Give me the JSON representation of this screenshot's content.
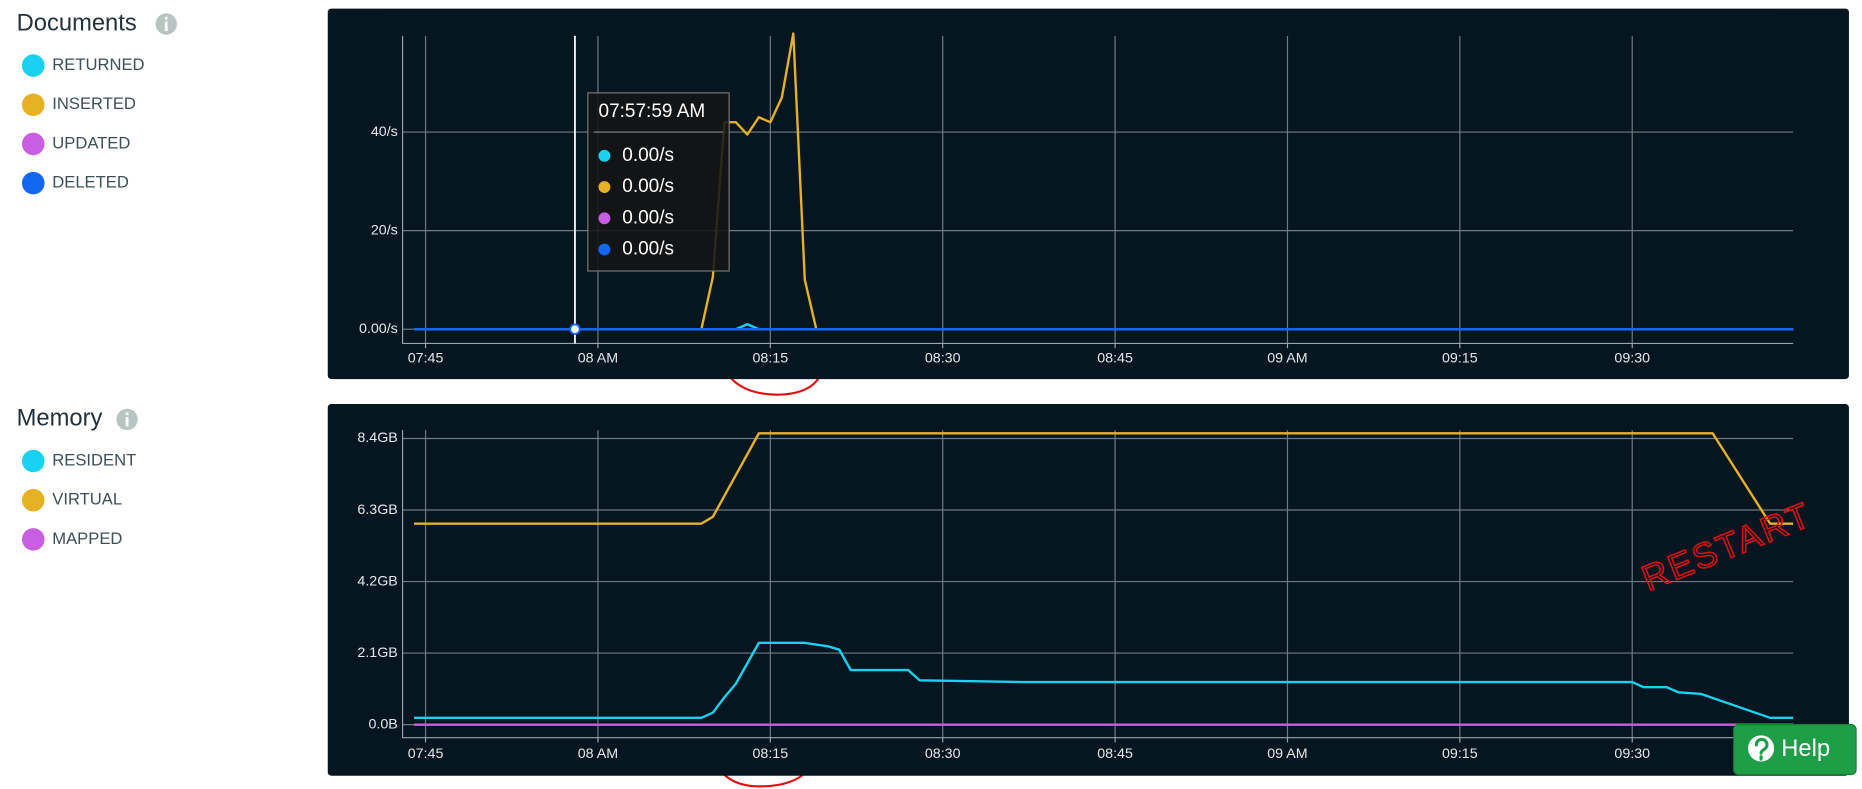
{
  "chart_data": [
    {
      "type": "line",
      "title": "Documents",
      "xlim": [
        "07:43",
        "09:44"
      ],
      "xticks": [
        "07:45",
        {
          "value": "08:00",
          "label": "08 AM"
        },
        "08:15",
        "08:30",
        "08:45",
        {
          "value": "09:00",
          "label": "09 AM"
        },
        "09:15",
        "09:30"
      ],
      "ylim": [
        0,
        60
      ],
      "yticks": [
        {
          "value": 0,
          "label": "0.00/s"
        },
        {
          "value": 20,
          "label": "20/s"
        },
        {
          "value": 40,
          "label": "40/s"
        }
      ],
      "grid": true,
      "series": [
        {
          "name": "RETURNED",
          "color": "#19d1f0",
          "x": [
            "07:44",
            "08:12",
            "08:13",
            "08:14",
            "09:44"
          ],
          "values": [
            0,
            0,
            1,
            0,
            0
          ]
        },
        {
          "name": "INSERTED",
          "color": "#e6b122",
          "x": [
            "07:44",
            "08:09",
            "08:10",
            "08:11",
            "08:12",
            "08:13",
            "08:14",
            "08:15",
            "08:16",
            "08:17",
            "08:18",
            "08:19",
            "09:44"
          ],
          "values": [
            0,
            0,
            10.6,
            42,
            42,
            39.5,
            43,
            42,
            47,
            60,
            10,
            0,
            0
          ]
        },
        {
          "name": "UPDATED",
          "color": "#c95ee3",
          "x": [
            "07:44",
            "09:44"
          ],
          "values": [
            0,
            0
          ]
        },
        {
          "name": "DELETED",
          "color": "#1366f0",
          "x": [
            "07:44",
            "09:44"
          ],
          "values": [
            0,
            0
          ]
        }
      ],
      "tooltip": {
        "time": "07:57:59 AM",
        "cursor_x": "07:58",
        "values": [
          0,
          0,
          0,
          0
        ],
        "value_labels": [
          "0.00/s",
          "0.00/s",
          "0.00/s",
          "0.00/s"
        ]
      }
    },
    {
      "type": "line",
      "title": "Memory",
      "xlim": [
        "07:43",
        "09:44"
      ],
      "xticks": [
        "07:45",
        {
          "value": "08:00",
          "label": "08 AM"
        },
        "08:15",
        "08:30",
        "08:45",
        {
          "value": "09:00",
          "label": "09 AM"
        },
        "09:15",
        "09:30"
      ],
      "ylim": [
        0,
        8.6
      ],
      "yticks": [
        {
          "value": 0,
          "label": "0.0B"
        },
        {
          "value": 2.1,
          "label": "2.1GB"
        },
        {
          "value": 4.2,
          "label": "4.2GB"
        },
        {
          "value": 6.3,
          "label": "6.3GB"
        },
        {
          "value": 8.4,
          "label": "8.4GB"
        }
      ],
      "grid": true,
      "series": [
        {
          "name": "RESIDENT",
          "color": "#19d1f0",
          "x": [
            "07:44",
            "08:09",
            "08:10",
            "08:11",
            "08:12",
            "08:14",
            "08:18",
            "08:20",
            "08:21",
            "08:22",
            "08:27",
            "08:28",
            "08:37",
            "09:30",
            "09:31",
            "09:33",
            "09:34",
            "09:36",
            "09:42",
            "09:44"
          ],
          "values": [
            0.2,
            0.2,
            0.35,
            0.8,
            1.2,
            2.4,
            2.4,
            2.3,
            2.2,
            1.6,
            1.6,
            1.3,
            1.25,
            1.25,
            1.1,
            1.1,
            0.95,
            0.9,
            0.2,
            0.2
          ]
        },
        {
          "name": "VIRTUAL",
          "color": "#e6b122",
          "x": [
            "07:44",
            "08:09",
            "08:10",
            "08:14",
            "09:37",
            "09:42",
            "09:44"
          ],
          "values": [
            5.9,
            5.9,
            6.1,
            8.55,
            8.55,
            5.9,
            5.9
          ]
        },
        {
          "name": "MAPPED",
          "color": "#c95ee3",
          "x": [
            "07:44",
            "09:44"
          ],
          "values": [
            0,
            0
          ]
        }
      ],
      "annotation": "RESTART"
    }
  ],
  "help_button": "Help"
}
